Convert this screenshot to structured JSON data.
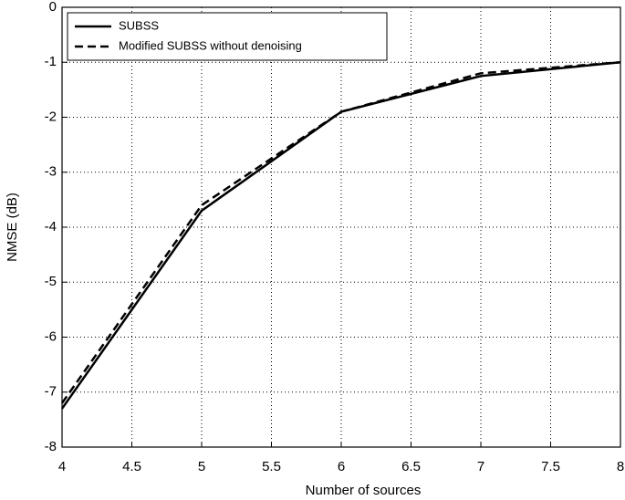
{
  "chart_data": {
    "type": "line",
    "x_label": "Number of sources",
    "y_label": "NMSE (dB)",
    "x": [
      4,
      5,
      6,
      7,
      8
    ],
    "series": [
      {
        "name": "SUBSS",
        "color": "#000000",
        "dash": "solid",
        "values": [
          -7.3,
          -3.7,
          -1.9,
          -1.25,
          -1.0
        ]
      },
      {
        "name": "Modified SUBSS without denoising",
        "color": "#000000",
        "dash": "dashed",
        "values": [
          -7.2,
          -3.6,
          -1.9,
          -1.2,
          -1.0
        ]
      }
    ],
    "xlim": [
      4,
      8
    ],
    "xticks": [
      4,
      4.5,
      5,
      5.5,
      6,
      6.5,
      7,
      7.5,
      8
    ],
    "ylim": [
      -8,
      0
    ],
    "yticks": [
      0,
      -1,
      -2,
      -3,
      -4,
      -5,
      -6,
      -7,
      -8
    ],
    "grid": true,
    "legend": "upper left"
  }
}
